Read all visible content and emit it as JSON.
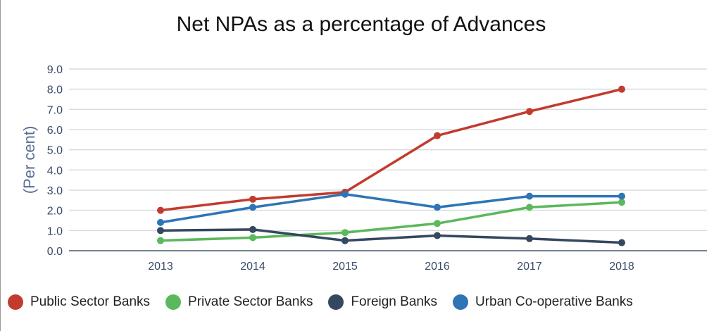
{
  "chart_data": {
    "type": "line",
    "title": "Net NPAs as a percentage of Advances",
    "xlabel": "",
    "ylabel": "(Per cent)",
    "ylim": [
      0,
      9
    ],
    "yticks": [
      "0.0",
      "1.0",
      "2.0",
      "3.0",
      "4.0",
      "5.0",
      "6.0",
      "7.0",
      "8.0",
      "9.0"
    ],
    "categories": [
      "2013",
      "2014",
      "2015",
      "2016",
      "2017",
      "2018"
    ],
    "grid": true,
    "legend": "bottom",
    "series": [
      {
        "name": "Public Sector Banks",
        "color": "#c23b2e",
        "values": [
          2.0,
          2.55,
          2.9,
          5.7,
          6.9,
          8.0
        ]
      },
      {
        "name": "Private Sector Banks",
        "color": "#5cb85c",
        "values": [
          0.5,
          0.65,
          0.9,
          1.35,
          2.15,
          2.4
        ]
      },
      {
        "name": "Foreign Banks",
        "color": "#34485f",
        "values": [
          1.0,
          1.05,
          0.5,
          0.75,
          0.6,
          0.4
        ]
      },
      {
        "name": "Urban Co-operative Banks",
        "color": "#2e75b6",
        "values": [
          1.4,
          2.15,
          2.8,
          2.15,
          2.7,
          2.7
        ]
      }
    ]
  }
}
